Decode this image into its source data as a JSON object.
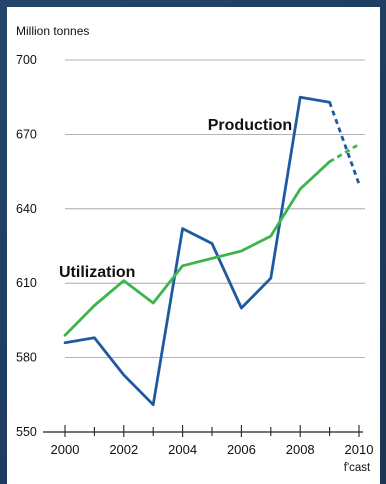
{
  "chart_data": {
    "type": "line",
    "ylabel": "Million tonnes",
    "ylim": [
      550,
      700
    ],
    "yticks": [
      550,
      580,
      610,
      640,
      670,
      700
    ],
    "xticks": [
      2000,
      2002,
      2004,
      2006,
      2008,
      2010
    ],
    "xlim": [
      2000,
      2010
    ],
    "forecast_label": "f'cast",
    "series": [
      {
        "name": "Production",
        "color": "#1f5aa0",
        "forecast_from": 2009,
        "x": [
          2000,
          2001,
          2002,
          2003,
          2004,
          2005,
          2006,
          2007,
          2008,
          2009,
          2010
        ],
        "values": [
          586,
          588,
          573,
          561,
          632,
          626,
          600,
          612,
          685,
          683,
          650
        ]
      },
      {
        "name": "Utilization",
        "color": "#3cb54a",
        "forecast_from": 2009,
        "x": [
          2000,
          2001,
          2002,
          2003,
          2004,
          2005,
          2006,
          2007,
          2008,
          2009,
          2010
        ],
        "values": [
          589,
          601,
          611,
          602,
          617,
          620,
          623,
          629,
          648,
          659,
          666
        ]
      }
    ]
  }
}
